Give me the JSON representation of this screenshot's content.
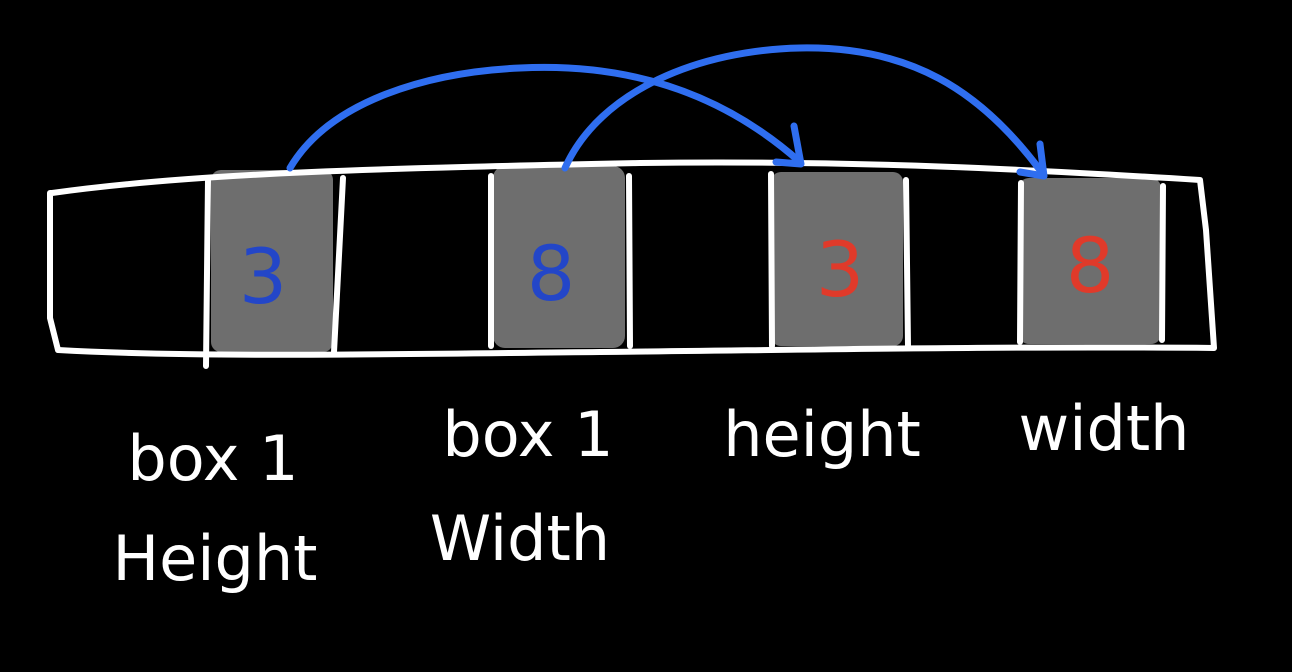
{
  "colors": {
    "background": "#000000",
    "outline": "#ffffff",
    "cell_fill": "#6e6e6e",
    "arrow": "#2f6ef0",
    "source_value": "#2346c8",
    "copied_value": "#e03a2a"
  },
  "cells": [
    {
      "value": "3",
      "role": "source"
    },
    {
      "value": "8",
      "role": "source"
    },
    {
      "value": "3",
      "role": "copy"
    },
    {
      "value": "8",
      "role": "copy"
    }
  ],
  "labels": [
    {
      "line1": "box 1",
      "line2": "Height"
    },
    {
      "line1": "box 1",
      "line2": "Width"
    },
    {
      "line1": "height",
      "line2": ""
    },
    {
      "line1": "width",
      "line2": ""
    }
  ],
  "arrows": [
    {
      "from_cell": 0,
      "to_cell": 2
    },
    {
      "from_cell": 1,
      "to_cell": 3
    }
  ]
}
